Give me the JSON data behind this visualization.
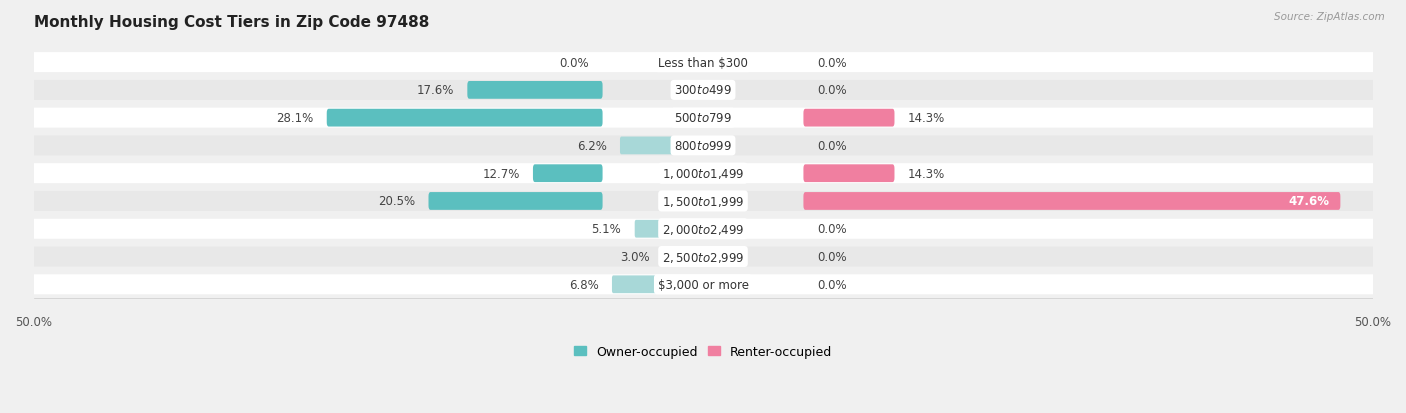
{
  "title": "Monthly Housing Cost Tiers in Zip Code 97488",
  "source": "Source: ZipAtlas.com",
  "categories": [
    "Less than $300",
    "$300 to $499",
    "$500 to $799",
    "$800 to $999",
    "$1,000 to $1,499",
    "$1,500 to $1,999",
    "$2,000 to $2,499",
    "$2,500 to $2,999",
    "$3,000 or more"
  ],
  "owner_values": [
    0.0,
    17.6,
    28.1,
    6.2,
    12.7,
    20.5,
    5.1,
    3.0,
    6.8
  ],
  "renter_values": [
    0.0,
    0.0,
    14.3,
    0.0,
    14.3,
    47.6,
    0.0,
    0.0,
    0.0
  ],
  "owner_color": "#5bbfbf",
  "renter_color": "#f07fa0",
  "owner_color_light": "#a8d8d8",
  "renter_color_light": "#f5b8ca",
  "bg_color": "#f0f0f0",
  "row_white": "#ffffff",
  "row_gray": "#e8e8e8",
  "title_fontsize": 11,
  "label_fontsize": 8.5,
  "cat_fontsize": 8.5,
  "axis_limit": 50.0,
  "legend_owner": "Owner-occupied",
  "legend_renter": "Renter-occupied"
}
